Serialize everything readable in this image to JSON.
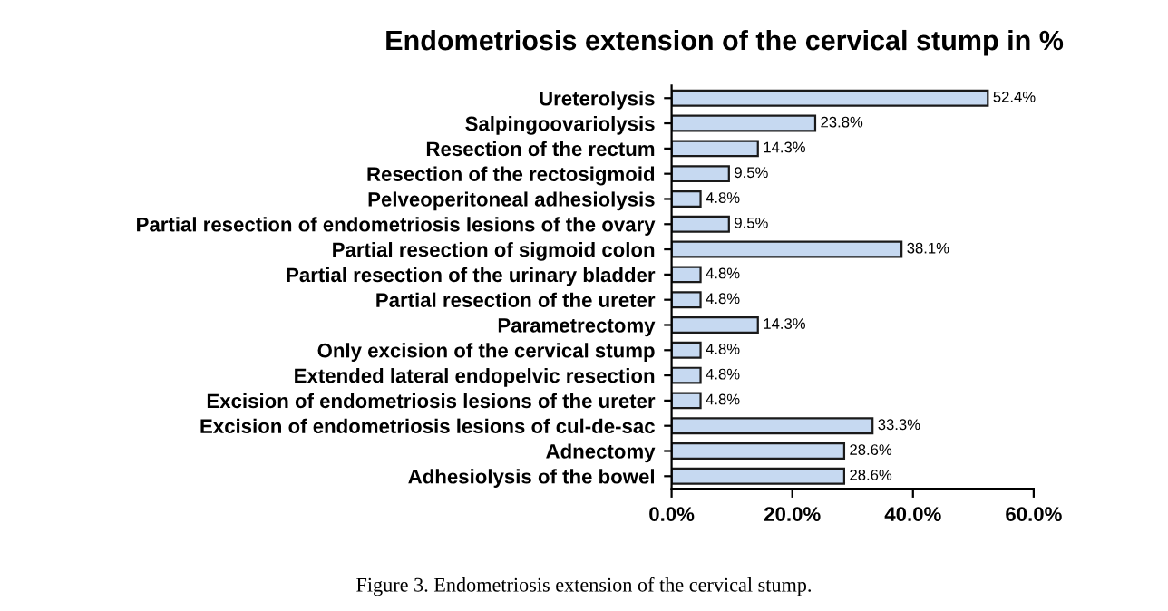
{
  "chart_data": {
    "type": "bar",
    "orientation": "horizontal",
    "title": "Endometriosis extension of the cervical stump in %",
    "categories": [
      "Ureterolysis",
      "Salpingoovariolysis",
      "Resection of the rectum",
      "Resection of the rectosigmoid",
      "Pelveoperitoneal adhesiolysis",
      "Partial resection of endometriosis lesions of the ovary",
      "Partial resection of sigmoid colon",
      "Partial resection of the urinary bladder",
      "Partial resection of the ureter",
      "Parametrectomy",
      "Only excision of the cervical stump",
      "Extended lateral endopelvic resection",
      "Excision of endometriosis lesions of the ureter",
      "Excision of endometriosis lesions of cul-de-sac",
      "Adnectomy",
      "Adhesiolysis of the bowel"
    ],
    "values": [
      52.4,
      23.8,
      14.3,
      9.5,
      4.8,
      9.5,
      38.1,
      4.8,
      4.8,
      14.3,
      4.8,
      4.8,
      4.8,
      33.3,
      28.6,
      28.6
    ],
    "value_labels": [
      "52.4%",
      "23.8%",
      "14.3%",
      "9.5%",
      "4.8%",
      "9.5%",
      "38.1%",
      "4.8%",
      "4.8%",
      "14.3%",
      "4.8%",
      "4.8%",
      "4.8%",
      "33.3%",
      "28.6%",
      "28.6%"
    ],
    "color": "#c6d9f1",
    "xlim": [
      0,
      60
    ],
    "xticks": [
      {
        "value": 0,
        "label": "0.0%"
      },
      {
        "value": 20,
        "label": "20.0%"
      },
      {
        "value": 40,
        "label": "40.0%"
      },
      {
        "value": 60,
        "label": "60.0%"
      }
    ],
    "grid": false,
    "legend": false,
    "annotations": [
      "Figure 3. Endometriosis extension of the cervical stump."
    ]
  }
}
